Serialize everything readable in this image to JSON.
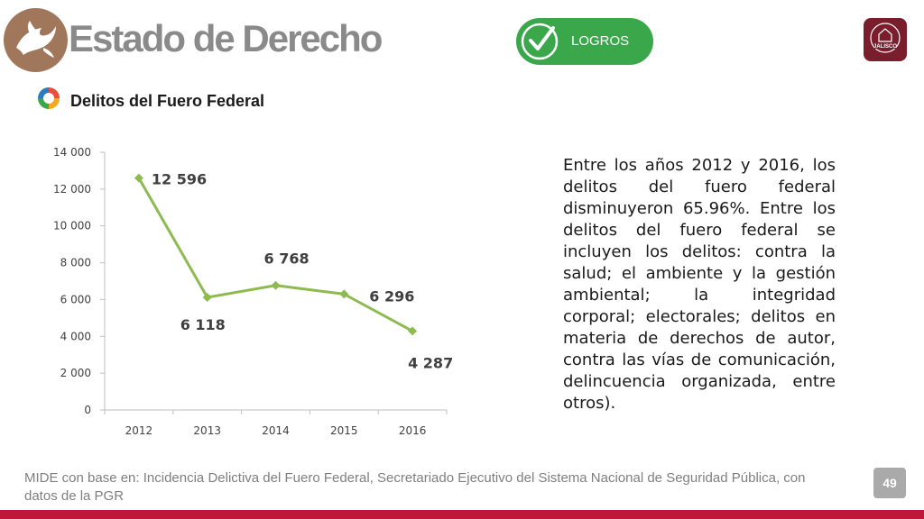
{
  "header": {
    "title": "Estado de Derecho",
    "badge_label": "LOGROS",
    "logo_icon": "dove-icon",
    "badge_icon": "checkmark-icon",
    "seal_label": "JALISCO",
    "seal_icon": "jalisco-seal-icon"
  },
  "section": {
    "subtitle": "Delitos del Fuero Federal",
    "icon": "multicolor-ring-icon"
  },
  "colors": {
    "title": "#8a8a8a",
    "badge": "#3aa84a",
    "logo": "#a0775a",
    "seal": "#7a1d2d",
    "line": "#8dbb50",
    "accent_bar": "#c0163a",
    "source_text": "#7f7f7f"
  },
  "chart_data": {
    "type": "line",
    "x": [
      "2012",
      "2013",
      "2014",
      "2015",
      "2016"
    ],
    "series": [
      {
        "values": [
          12596,
          6118,
          6768,
          6296,
          4287
        ],
        "labels": [
          "12 596",
          "6 118",
          "6 768",
          "6 296",
          "4 287"
        ],
        "color": "#8dbb50"
      }
    ],
    "ylim": [
      0,
      14000
    ],
    "yticks": [
      0,
      2000,
      4000,
      6000,
      8000,
      10000,
      12000,
      14000
    ],
    "ytick_labels": [
      "0",
      "2 000",
      "4 000",
      "6 000",
      "8 000",
      "10 000",
      "12 000",
      "14 000"
    ],
    "grid": false,
    "legend": "none",
    "title": "",
    "xlabel": "",
    "ylabel": ""
  },
  "description": "Entre los años 2012 y 2016, los delitos del fuero federal disminuyeron 65.96%. Entre los delitos del fuero federal se incluyen los delitos: contra la salud; el ambiente y la gestión ambiental; la integridad corporal; electorales; delitos en materia de derechos de autor, contra las vías de comunicación, delincuencia organizada, entre otros).",
  "footer": {
    "source": "MIDE con base en: Incidencia Delictiva del Fuero Federal, Secretariado Ejecutivo del Sistema Nacional de Seguridad Pública, con datos de la PGR",
    "page_number": "49"
  }
}
